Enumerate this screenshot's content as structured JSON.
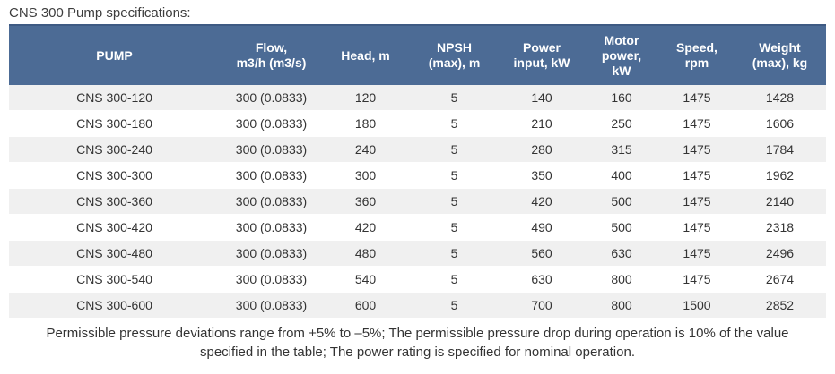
{
  "page": {
    "title": "CNS 300 Pump specifications:"
  },
  "colors": {
    "header_bg": "#4c6b95",
    "header_top_border": "#3e5a83",
    "header_text": "#ffffff",
    "row_stripe_bg": "#f0f0f0",
    "row_bg": "#ffffff",
    "body_text": "#333333"
  },
  "table": {
    "columns": [
      {
        "id": "pump",
        "label": "PUMP",
        "label_lines": [
          "PUMP"
        ]
      },
      {
        "id": "flow",
        "label": "Flow, m3/h (m3/s)",
        "label_lines": [
          "Flow,",
          "m3/h (m3/s)"
        ]
      },
      {
        "id": "head",
        "label": "Head, m",
        "label_lines": [
          "Head, m"
        ]
      },
      {
        "id": "npsh",
        "label": "NPSH (max), m",
        "label_lines": [
          "NPSH",
          "(max), m"
        ]
      },
      {
        "id": "power-input",
        "label": "Power input, kW",
        "label_lines": [
          "Power",
          "input, kW"
        ]
      },
      {
        "id": "motor-power",
        "label": "Motor power, kW",
        "label_lines": [
          "Motor",
          "power,",
          "kW"
        ]
      },
      {
        "id": "speed",
        "label": "Speed, rpm",
        "label_lines": [
          "Speed,",
          "rpm"
        ]
      },
      {
        "id": "weight",
        "label": "Weight (max), kg",
        "label_lines": [
          "Weight",
          "(max), kg"
        ]
      }
    ],
    "rows": [
      [
        "CNS 300-120",
        "300 (0.0833)",
        "120",
        "5",
        "140",
        "160",
        "1475",
        "1428"
      ],
      [
        "CNS 300-180",
        "300 (0.0833)",
        "180",
        "5",
        "210",
        "250",
        "1475",
        "1606"
      ],
      [
        "CNS 300-240",
        "300 (0.0833)",
        "240",
        "5",
        "280",
        "315",
        "1475",
        "1784"
      ],
      [
        "CNS 300-300",
        "300 (0.0833)",
        "300",
        "5",
        "350",
        "400",
        "1475",
        "1962"
      ],
      [
        "CNS 300-360",
        "300 (0.0833)",
        "360",
        "5",
        "420",
        "500",
        "1475",
        "2140"
      ],
      [
        "CNS 300-420",
        "300 (0.0833)",
        "420",
        "5",
        "490",
        "500",
        "1475",
        "2318"
      ],
      [
        "CNS 300-480",
        "300 (0.0833)",
        "480",
        "5",
        "560",
        "630",
        "1475",
        "2496"
      ],
      [
        "CNS 300-540",
        "300 (0.0833)",
        "540",
        "5",
        "630",
        "800",
        "1475",
        "2674"
      ],
      [
        "CNS 300-600",
        "300 (0.0833)",
        "600",
        "5",
        "700",
        "800",
        "1500",
        "2852"
      ]
    ]
  },
  "footer": {
    "text": "Permissible pressure deviations range from +5% to –5%; The permissible pressure drop during operation is 10% of the value specified in the table; The power rating is specified for nominal operation.",
    "lines": [
      "Permissible pressure deviations range from +5% to –5%; The permissible pressure drop during operation is 10% of the value",
      "specified in the table; The power rating is specified for nominal operation."
    ]
  }
}
